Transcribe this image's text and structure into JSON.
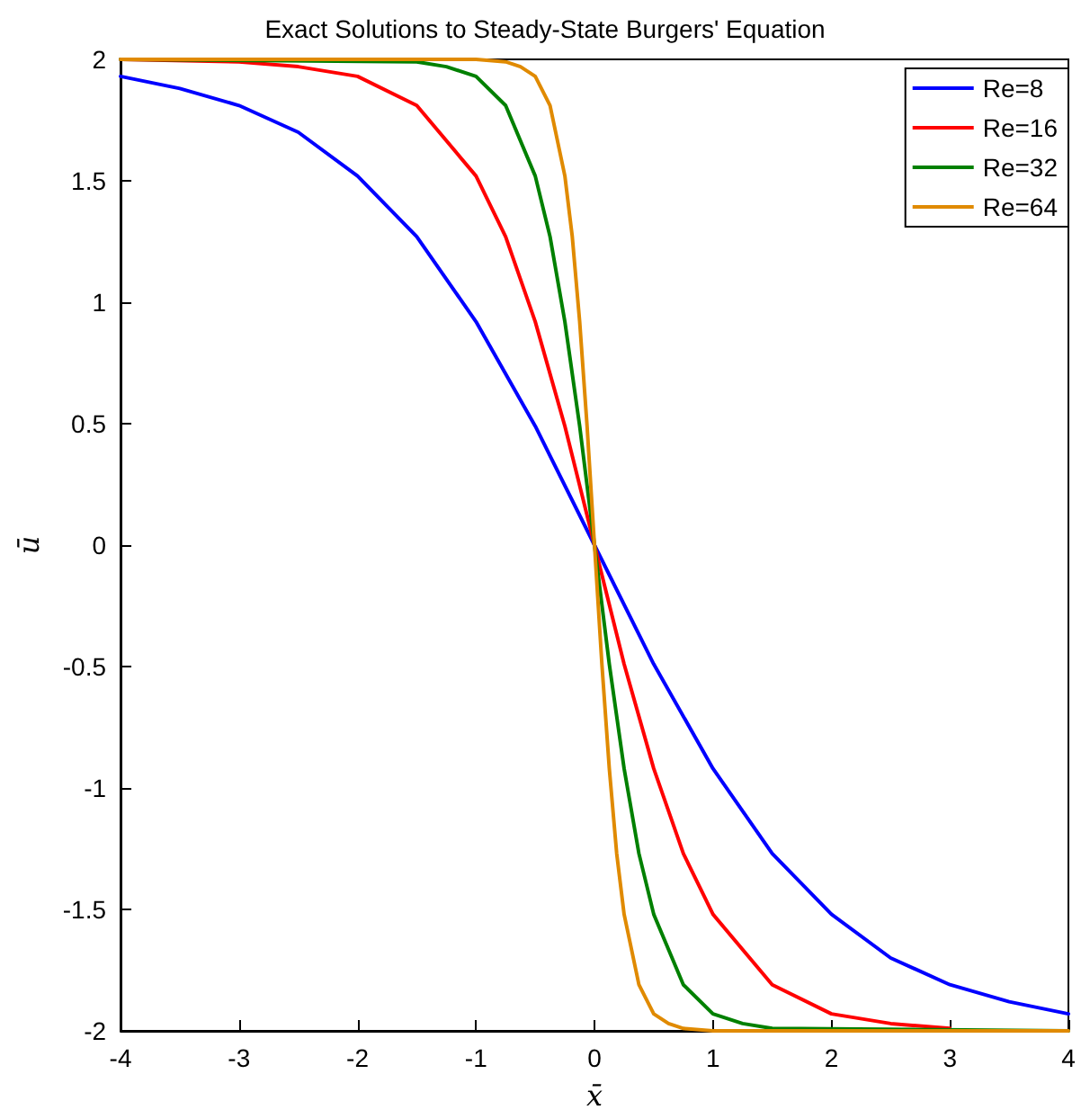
{
  "chart_data": {
    "type": "line",
    "title": "Exact Solutions to Steady-State Burgers' Equation",
    "xlabel": "x̄",
    "ylabel": "ū",
    "xlim": [
      -4,
      4
    ],
    "xticks": [
      -4,
      -3,
      -2,
      -1,
      0,
      1,
      2,
      3,
      4
    ],
    "ylim": [
      -2,
      2
    ],
    "yticks": [
      -2,
      -1.5,
      -1,
      -0.5,
      0,
      0.5,
      1,
      1.5,
      2
    ],
    "grid": false,
    "legend": "top right",
    "marker": "none",
    "line_style": "solid",
    "series": [
      {
        "name": "Re=8",
        "color": "#0000ff",
        "x": [
          -4,
          -3.5,
          -3,
          -2.5,
          -2,
          -1.5,
          -1,
          -0.5,
          0,
          0.5,
          1,
          1.5,
          2,
          2.5,
          3,
          3.5,
          4
        ],
        "values": [
          1.93,
          1.88,
          1.81,
          1.7,
          1.52,
          1.27,
          0.92,
          0.49,
          0,
          -0.49,
          -0.92,
          -1.27,
          -1.52,
          -1.7,
          -1.81,
          -1.88,
          -1.93
        ]
      },
      {
        "name": "Re=16",
        "color": "#ff0000",
        "x": [
          -4,
          -3,
          -2.5,
          -2,
          -1.5,
          -1,
          -0.75,
          -0.5,
          -0.25,
          0,
          0.25,
          0.5,
          0.75,
          1,
          1.5,
          2,
          2.5,
          3
        ],
        "values": [
          2,
          1.99,
          1.97,
          1.93,
          1.81,
          1.52,
          1.27,
          0.92,
          0.49,
          0,
          -0.49,
          -0.92,
          -1.27,
          -1.52,
          -1.81,
          -1.93,
          -1.97,
          -1.99
        ]
      },
      {
        "name": "Re=32",
        "color": "#008000",
        "x": [
          -4,
          -1.5,
          -1.25,
          -1,
          -0.75,
          -0.5,
          -0.375,
          -0.25,
          -0.125,
          0,
          0.125,
          0.25,
          0.375,
          0.5,
          0.75,
          1,
          1.25,
          1.5,
          4
        ],
        "values": [
          2,
          1.99,
          1.97,
          1.93,
          1.81,
          1.52,
          1.27,
          0.92,
          0.49,
          0,
          -0.49,
          -0.92,
          -1.27,
          -1.52,
          -1.81,
          -1.93,
          -1.97,
          -1.99,
          -2
        ]
      },
      {
        "name": "Re=64",
        "color": "#e08a00",
        "x": [
          -4,
          -1,
          -0.75,
          -0.625,
          -0.5,
          -0.375,
          -0.25,
          -0.1875,
          -0.125,
          -0.0625,
          0,
          0.0625,
          0.125,
          0.1875,
          0.25,
          0.375,
          0.5,
          0.625,
          0.75,
          1,
          4
        ],
        "values": [
          2,
          2,
          1.99,
          1.97,
          1.93,
          1.81,
          1.52,
          1.27,
          0.92,
          0.49,
          0,
          -0.49,
          -0.92,
          -1.27,
          -1.52,
          -1.81,
          -1.93,
          -1.97,
          -1.99,
          -2,
          -2
        ]
      }
    ]
  }
}
